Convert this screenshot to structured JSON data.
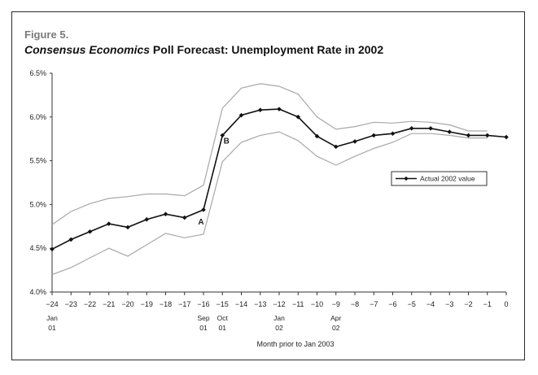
{
  "figure_label": "Figure 5.",
  "title_italic": "Consensus Economics",
  "title_rest": " Poll Forecast: Unemployment Rate in 2002",
  "chart_data": {
    "type": "line",
    "xlabel": "Month prior to Jan 2003",
    "x": [
      -24,
      -23,
      -22,
      -21,
      -20,
      -19,
      -18,
      -17,
      -16,
      -15,
      -14,
      -13,
      -12,
      -11,
      -10,
      -9,
      -8,
      -7,
      -6,
      -5,
      -4,
      -3,
      -2,
      -1,
      0
    ],
    "xlim": [
      -24,
      0
    ],
    "ylim": [
      4.0,
      6.5
    ],
    "y_ticks": [
      "4.0%",
      "4.5%",
      "5.0%",
      "5.5%",
      "6.0%",
      "6.5%"
    ],
    "x_ticks": [
      "−24",
      "−23",
      "−22",
      "−21",
      "−20",
      "−19",
      "−18",
      "−17",
      "−16",
      "−15",
      "−14",
      "−13",
      "−12",
      "−11",
      "−10",
      "−9",
      "−8",
      "−7",
      "−6",
      "−5",
      "−4",
      "−3",
      "−2",
      "−1",
      "0"
    ],
    "x_sublabels": [
      {
        "x": -24,
        "line1": "Jan",
        "line2": "01"
      },
      {
        "x": -16,
        "line1": "Sep",
        "line2": "01"
      },
      {
        "x": -15,
        "line1": "Oct",
        "line2": "01"
      },
      {
        "x": -12,
        "line1": "Jan",
        "line2": "02"
      },
      {
        "x": -9,
        "line1": "Apr",
        "line2": "02"
      }
    ],
    "series": [
      {
        "role": "forecast",
        "color": "#111111",
        "marker": "diamond",
        "values": [
          4.49,
          4.6,
          4.69,
          4.78,
          4.74,
          4.83,
          4.89,
          4.85,
          4.94,
          5.79,
          6.02,
          6.08,
          6.09,
          6.0,
          5.78,
          5.66,
          5.72,
          5.79,
          5.81,
          5.87,
          5.87,
          5.83,
          5.79,
          5.79,
          5.77
        ]
      },
      {
        "role": "upper",
        "color": "#a8a8a8",
        "values": [
          4.77,
          4.92,
          5.01,
          5.07,
          5.09,
          5.12,
          5.12,
          5.1,
          5.22,
          6.1,
          6.33,
          6.38,
          6.35,
          6.26,
          6.0,
          5.86,
          5.89,
          5.94,
          5.93,
          5.95,
          5.94,
          5.91,
          5.84,
          5.84,
          null
        ]
      },
      {
        "role": "lower",
        "color": "#a8a8a8",
        "values": [
          4.2,
          4.28,
          4.39,
          4.5,
          4.41,
          4.54,
          4.67,
          4.62,
          4.66,
          5.49,
          5.71,
          5.79,
          5.83,
          5.73,
          5.55,
          5.45,
          5.55,
          5.64,
          5.71,
          5.81,
          5.81,
          5.79,
          5.76,
          5.76,
          null
        ]
      }
    ],
    "legend": {
      "label": "Actual 2002 value",
      "placement": "right"
    },
    "annotations": [
      {
        "text": "A",
        "x": -16,
        "y": 4.94
      },
      {
        "text": "B",
        "x": -15,
        "y": 5.79
      }
    ]
  }
}
